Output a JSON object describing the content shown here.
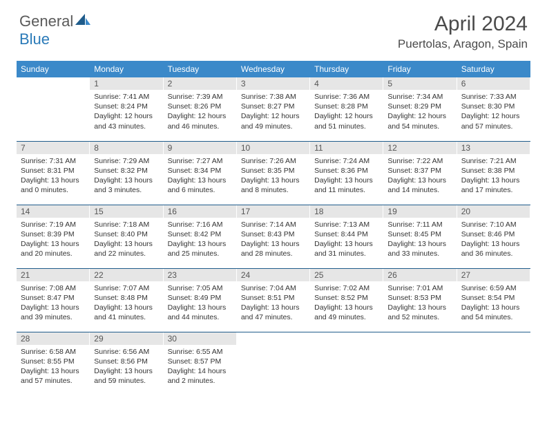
{
  "brand": {
    "general": "General",
    "blue": "Blue"
  },
  "title": "April 2024",
  "location": "Puertolas, Aragon, Spain",
  "colors": {
    "header_bg": "#3b89c9",
    "header_text": "#ffffff",
    "daynum_bg": "#e6e6e6",
    "daynum_text": "#555555",
    "row_border": "#1f5c8b",
    "logo_gray": "#5a5a5a",
    "logo_blue": "#2a7ab8",
    "title_color": "#4a4a4a"
  },
  "weekdays": [
    "Sunday",
    "Monday",
    "Tuesday",
    "Wednesday",
    "Thursday",
    "Friday",
    "Saturday"
  ],
  "weeks": [
    [
      null,
      {
        "n": "1",
        "sr": "7:41 AM",
        "ss": "8:24 PM",
        "dl": "12 hours and 43 minutes."
      },
      {
        "n": "2",
        "sr": "7:39 AM",
        "ss": "8:26 PM",
        "dl": "12 hours and 46 minutes."
      },
      {
        "n": "3",
        "sr": "7:38 AM",
        "ss": "8:27 PM",
        "dl": "12 hours and 49 minutes."
      },
      {
        "n": "4",
        "sr": "7:36 AM",
        "ss": "8:28 PM",
        "dl": "12 hours and 51 minutes."
      },
      {
        "n": "5",
        "sr": "7:34 AM",
        "ss": "8:29 PM",
        "dl": "12 hours and 54 minutes."
      },
      {
        "n": "6",
        "sr": "7:33 AM",
        "ss": "8:30 PM",
        "dl": "12 hours and 57 minutes."
      }
    ],
    [
      {
        "n": "7",
        "sr": "7:31 AM",
        "ss": "8:31 PM",
        "dl": "13 hours and 0 minutes."
      },
      {
        "n": "8",
        "sr": "7:29 AM",
        "ss": "8:32 PM",
        "dl": "13 hours and 3 minutes."
      },
      {
        "n": "9",
        "sr": "7:27 AM",
        "ss": "8:34 PM",
        "dl": "13 hours and 6 minutes."
      },
      {
        "n": "10",
        "sr": "7:26 AM",
        "ss": "8:35 PM",
        "dl": "13 hours and 8 minutes."
      },
      {
        "n": "11",
        "sr": "7:24 AM",
        "ss": "8:36 PM",
        "dl": "13 hours and 11 minutes."
      },
      {
        "n": "12",
        "sr": "7:22 AM",
        "ss": "8:37 PM",
        "dl": "13 hours and 14 minutes."
      },
      {
        "n": "13",
        "sr": "7:21 AM",
        "ss": "8:38 PM",
        "dl": "13 hours and 17 minutes."
      }
    ],
    [
      {
        "n": "14",
        "sr": "7:19 AM",
        "ss": "8:39 PM",
        "dl": "13 hours and 20 minutes."
      },
      {
        "n": "15",
        "sr": "7:18 AM",
        "ss": "8:40 PM",
        "dl": "13 hours and 22 minutes."
      },
      {
        "n": "16",
        "sr": "7:16 AM",
        "ss": "8:42 PM",
        "dl": "13 hours and 25 minutes."
      },
      {
        "n": "17",
        "sr": "7:14 AM",
        "ss": "8:43 PM",
        "dl": "13 hours and 28 minutes."
      },
      {
        "n": "18",
        "sr": "7:13 AM",
        "ss": "8:44 PM",
        "dl": "13 hours and 31 minutes."
      },
      {
        "n": "19",
        "sr": "7:11 AM",
        "ss": "8:45 PM",
        "dl": "13 hours and 33 minutes."
      },
      {
        "n": "20",
        "sr": "7:10 AM",
        "ss": "8:46 PM",
        "dl": "13 hours and 36 minutes."
      }
    ],
    [
      {
        "n": "21",
        "sr": "7:08 AM",
        "ss": "8:47 PM",
        "dl": "13 hours and 39 minutes."
      },
      {
        "n": "22",
        "sr": "7:07 AM",
        "ss": "8:48 PM",
        "dl": "13 hours and 41 minutes."
      },
      {
        "n": "23",
        "sr": "7:05 AM",
        "ss": "8:49 PM",
        "dl": "13 hours and 44 minutes."
      },
      {
        "n": "24",
        "sr": "7:04 AM",
        "ss": "8:51 PM",
        "dl": "13 hours and 47 minutes."
      },
      {
        "n": "25",
        "sr": "7:02 AM",
        "ss": "8:52 PM",
        "dl": "13 hours and 49 minutes."
      },
      {
        "n": "26",
        "sr": "7:01 AM",
        "ss": "8:53 PM",
        "dl": "13 hours and 52 minutes."
      },
      {
        "n": "27",
        "sr": "6:59 AM",
        "ss": "8:54 PM",
        "dl": "13 hours and 54 minutes."
      }
    ],
    [
      {
        "n": "28",
        "sr": "6:58 AM",
        "ss": "8:55 PM",
        "dl": "13 hours and 57 minutes."
      },
      {
        "n": "29",
        "sr": "6:56 AM",
        "ss": "8:56 PM",
        "dl": "13 hours and 59 minutes."
      },
      {
        "n": "30",
        "sr": "6:55 AM",
        "ss": "8:57 PM",
        "dl": "14 hours and 2 minutes."
      },
      null,
      null,
      null,
      null
    ]
  ],
  "labels": {
    "sunrise": "Sunrise:",
    "sunset": "Sunset:",
    "daylight": "Daylight:"
  }
}
